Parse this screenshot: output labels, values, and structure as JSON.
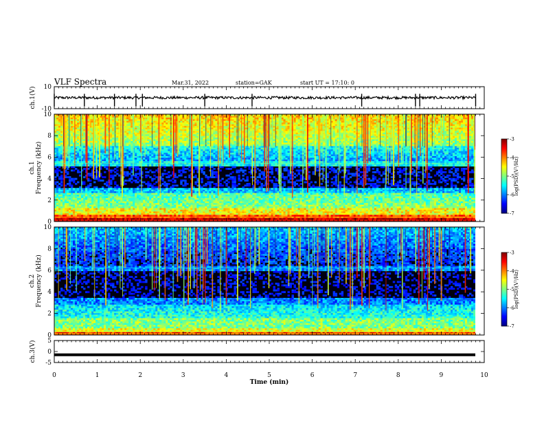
{
  "header": {
    "title": "VLF Spectra",
    "date": "Mar.31, 2022",
    "station": "station=GAK",
    "start": "start UT =  17:10: 0"
  },
  "chart_data": [
    {
      "type": "line",
      "name": "waveform-ch1",
      "ylabel": "ch.1(V)",
      "ylim": [
        -10,
        10
      ],
      "yticks": [
        "10",
        "-10"
      ],
      "baseline": 0.0,
      "noise_amplitude": 1.2,
      "spikes_x_min": [
        0.0,
        0.7,
        1.4,
        1.9,
        2.05,
        3.5,
        4.6,
        7.15,
        8.4,
        8.5,
        9.8
      ]
    },
    {
      "type": "heatmap",
      "name": "spectrogram-ch1",
      "ylabel": "ch.1\nFrequency (kHz)",
      "ylim": [
        0,
        10
      ],
      "yticks": [
        "0",
        "2",
        "4",
        "6",
        "8",
        "10"
      ],
      "colorbar": {
        "label": "log(PSD)(V²/Hz)",
        "range": [
          -7,
          -3
        ],
        "ticks": [
          "-3",
          "-4",
          "-5",
          "-6",
          "-7"
        ]
      }
    },
    {
      "type": "heatmap",
      "name": "spectrogram-ch2",
      "ylabel": "ch.2\nFrequency (kHz)",
      "ylim": [
        0,
        10
      ],
      "yticks": [
        "0",
        "2",
        "4",
        "6",
        "8",
        "10"
      ],
      "colorbar": {
        "label": "log(PSD)(V²/Hz)",
        "range": [
          -7,
          -3
        ],
        "ticks": [
          "-3",
          "-4",
          "-5",
          "-6",
          "-7"
        ]
      }
    },
    {
      "type": "line",
      "name": "waveform-ch3",
      "ylabel": "ch.3(V)",
      "ylim": [
        -5,
        5
      ],
      "yticks": [
        "5",
        "0",
        "-5"
      ],
      "baseline": -1.5
    }
  ],
  "xaxis": {
    "label": "Time (min)",
    "range": [
      0,
      10
    ],
    "ticks": [
      "0",
      "1",
      "2",
      "3",
      "4",
      "5",
      "6",
      "7",
      "8",
      "9",
      "10"
    ],
    "data_end": 9.8
  }
}
